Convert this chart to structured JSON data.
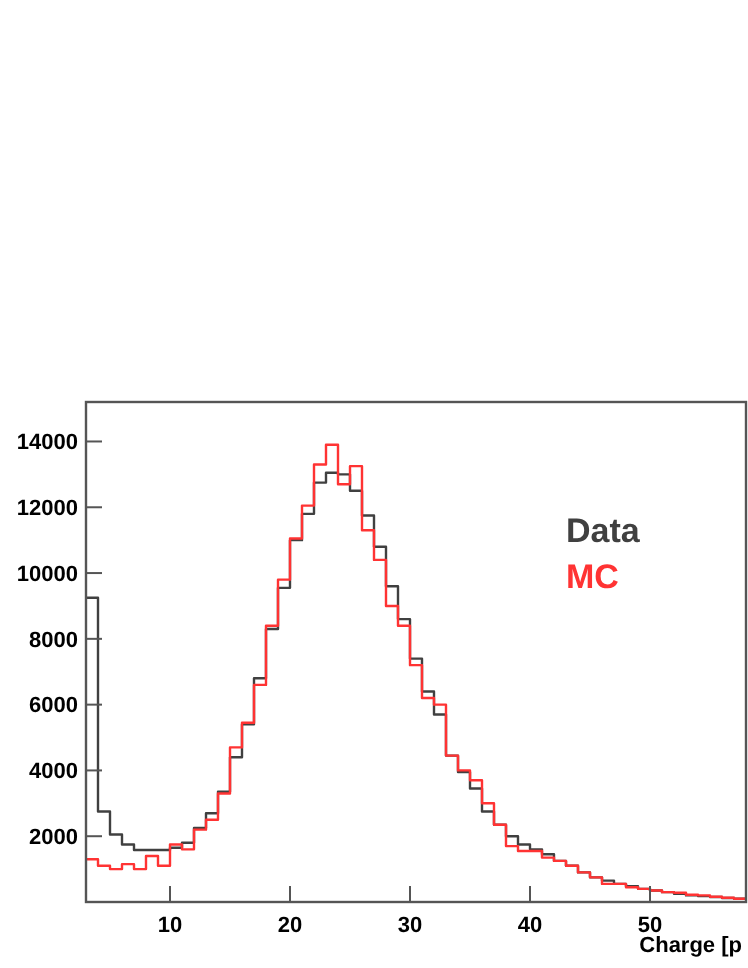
{
  "chart_data": {
    "type": "histogram",
    "xlabel": "Charge [p",
    "bins": [
      3,
      4,
      5,
      6,
      7,
      8,
      9,
      10,
      11,
      12,
      13,
      14,
      15,
      16,
      17,
      18,
      19,
      20,
      21,
      22,
      23,
      24,
      25,
      26,
      27,
      28,
      29,
      30,
      31,
      32,
      33,
      34,
      35,
      36,
      37,
      38,
      39,
      40,
      41,
      42,
      43,
      44,
      45,
      46,
      47,
      48,
      49,
      50,
      51,
      52,
      53,
      54,
      55,
      56,
      57,
      58
    ],
    "series": [
      {
        "name": "Data",
        "color": "#404040",
        "values": [
          9250,
          2750,
          2050,
          1750,
          1580,
          1580,
          1580,
          1650,
          1800,
          2250,
          2700,
          3350,
          4400,
          5400,
          6800,
          8300,
          9550,
          11000,
          11800,
          12750,
          13050,
          13000,
          12500,
          11750,
          10800,
          9600,
          8600,
          7400,
          6400,
          5700,
          4450,
          3950,
          3450,
          2750,
          2350,
          2000,
          1750,
          1600,
          1450,
          1250,
          1100,
          900,
          750,
          650,
          550,
          480,
          400,
          350,
          300,
          250,
          200,
          180,
          150,
          120,
          100
        ]
      },
      {
        "name": "MC",
        "color": "#ff3333",
        "values": [
          1300,
          1100,
          1000,
          1150,
          1000,
          1400,
          1100,
          1750,
          1600,
          2200,
          2500,
          3300,
          4700,
          5450,
          6600,
          8400,
          9800,
          11050,
          12050,
          13300,
          13900,
          12700,
          13250,
          11300,
          10400,
          9000,
          8400,
          7200,
          6200,
          6000,
          4450,
          4000,
          3700,
          3000,
          2350,
          1700,
          1550,
          1550,
          1350,
          1250,
          1100,
          900,
          750,
          550,
          550,
          450,
          400,
          350,
          300,
          280,
          220,
          200,
          160,
          130,
          100
        ]
      }
    ],
    "xlim": [
      3,
      58
    ],
    "ylim": [
      0,
      15200
    ],
    "xticks": [
      10,
      20,
      30,
      40,
      50
    ],
    "yticks": [
      2000,
      4000,
      6000,
      8000,
      10000,
      12000,
      14000
    ],
    "legend": "right",
    "grid": false
  }
}
